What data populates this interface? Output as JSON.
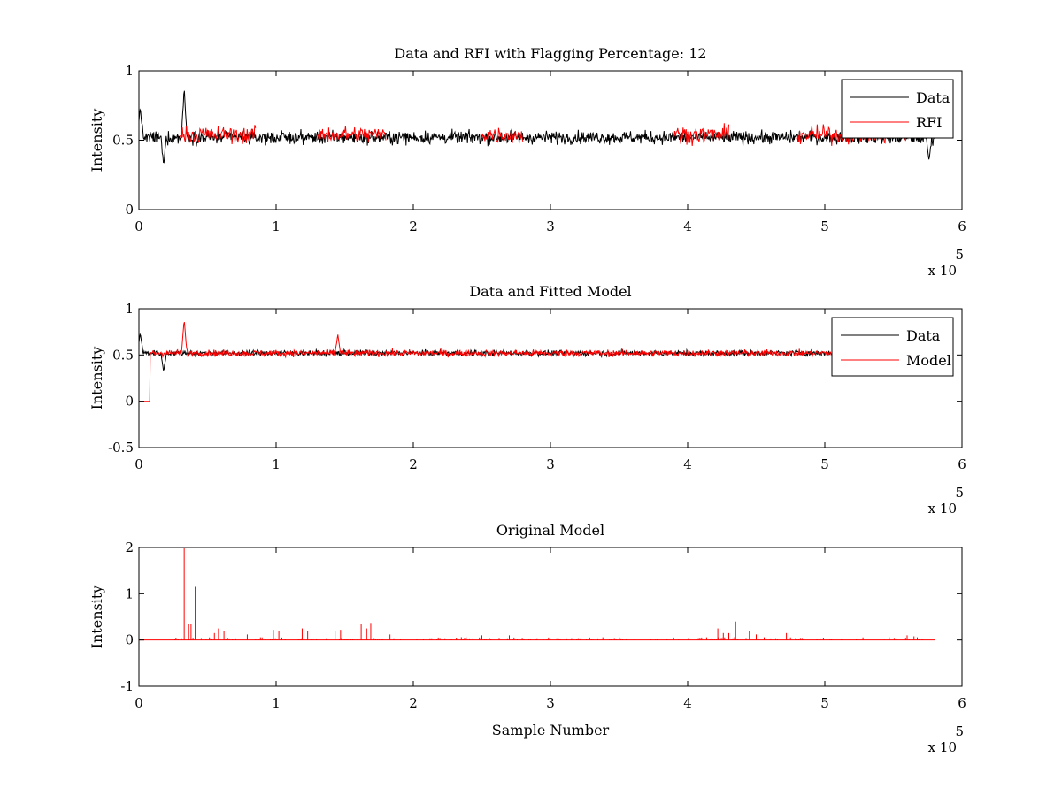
{
  "chart_data": [
    {
      "type": "line",
      "title": "Data and RFI with Flagging Percentage: 12",
      "xlabel": "",
      "ylabel": "Intensity",
      "xlim": [
        0,
        6
      ],
      "ylim": [
        0,
        1
      ],
      "x_ticks": [
        "0",
        "1",
        "2",
        "3",
        "4",
        "5",
        "6"
      ],
      "y_ticks": [
        "0",
        "0.5",
        "1"
      ],
      "x_multiplier": "x 10",
      "x_multiplier_exp": "5",
      "legend": [
        "Data",
        "RFI"
      ],
      "legend_position": "top-right",
      "series": [
        {
          "name": "Data",
          "color": "#000000",
          "baseline": 0.52,
          "noise": 0.045,
          "x_range": [
            0,
            5.8
          ],
          "features": [
            {
              "x": 0.01,
              "y": 0.74
            },
            {
              "x": 0.18,
              "y": 0.32
            },
            {
              "x": 0.33,
              "y": 0.88
            },
            {
              "x": 5.76,
              "y": 0.35
            }
          ]
        },
        {
          "name": "RFI",
          "color": "#ff0000",
          "baseline": 0.54,
          "noise": 0.06,
          "segments": [
            [
              0.3,
              0.85
            ],
            [
              1.3,
              1.8
            ],
            [
              2.5,
              2.8
            ],
            [
              3.9,
              4.3
            ],
            [
              4.8,
              5.6
            ]
          ]
        }
      ]
    },
    {
      "type": "line",
      "title": "Data and Fitted Model",
      "xlabel": "",
      "ylabel": "Intensity",
      "xlim": [
        0,
        6
      ],
      "ylim": [
        -0.5,
        1
      ],
      "x_ticks": [
        "0",
        "1",
        "2",
        "3",
        "4",
        "5",
        "6"
      ],
      "y_ticks": [
        "-0.5",
        "0",
        "0.5",
        "1"
      ],
      "x_multiplier": "x 10",
      "x_multiplier_exp": "5",
      "legend": [
        "Data",
        "Model"
      ],
      "legend_position": "top-right",
      "series": [
        {
          "name": "Data",
          "color": "#000000",
          "baseline": 0.52,
          "noise": 0.03,
          "x_range": [
            0,
            5.8
          ],
          "features": [
            {
              "x": 0.01,
              "y": 0.74
            },
            {
              "x": 0.18,
              "y": 0.32
            }
          ]
        },
        {
          "name": "Model",
          "color": "#ff0000",
          "baseline": 0.52,
          "noise": 0.035,
          "x_range": [
            0,
            5.8
          ],
          "features": [
            {
              "x": 0.33,
              "y": 0.88
            },
            {
              "x": 1.45,
              "y": 0.72
            }
          ],
          "step": {
            "x_end": 0.08,
            "value": 0
          }
        }
      ]
    },
    {
      "type": "line",
      "title": "Original Model",
      "xlabel": "Sample Number",
      "ylabel": "Intensity",
      "xlim": [
        0,
        6
      ],
      "ylim": [
        -1,
        2
      ],
      "x_ticks": [
        "0",
        "1",
        "2",
        "3",
        "4",
        "5",
        "6"
      ],
      "y_ticks": [
        "-1",
        "0",
        "1",
        "2"
      ],
      "x_multiplier": "x 10",
      "x_multiplier_exp": "5",
      "legend": [],
      "series": [
        {
          "name": "Original Model",
          "color": "#ff0000",
          "baseline": 0,
          "x_range": [
            0,
            5.8
          ],
          "spikes": [
            {
              "x": 0.33,
              "y": 2.0
            },
            {
              "x": 0.36,
              "y": 0.35
            },
            {
              "x": 0.38,
              "y": 0.35
            },
            {
              "x": 0.41,
              "y": 1.15
            },
            {
              "x": 0.27,
              "y": 0.05
            },
            {
              "x": 0.55,
              "y": 0.15
            },
            {
              "x": 0.58,
              "y": 0.25
            },
            {
              "x": 0.62,
              "y": 0.2
            },
            {
              "x": 0.79,
              "y": 0.12
            },
            {
              "x": 0.98,
              "y": 0.22
            },
            {
              "x": 1.02,
              "y": 0.2
            },
            {
              "x": 1.19,
              "y": 0.25
            },
            {
              "x": 1.23,
              "y": 0.2
            },
            {
              "x": 1.43,
              "y": 0.2
            },
            {
              "x": 1.47,
              "y": 0.22
            },
            {
              "x": 1.62,
              "y": 0.35
            },
            {
              "x": 1.66,
              "y": 0.25
            },
            {
              "x": 1.69,
              "y": 0.37
            },
            {
              "x": 1.83,
              "y": 0.12
            },
            {
              "x": 2.5,
              "y": 0.1
            },
            {
              "x": 2.7,
              "y": 0.1
            },
            {
              "x": 4.22,
              "y": 0.25
            },
            {
              "x": 4.26,
              "y": 0.15
            },
            {
              "x": 4.3,
              "y": 0.15
            },
            {
              "x": 4.35,
              "y": 0.4
            },
            {
              "x": 4.45,
              "y": 0.2
            },
            {
              "x": 4.5,
              "y": 0.12
            },
            {
              "x": 4.72,
              "y": 0.15
            },
            {
              "x": 5.6,
              "y": 0.1
            },
            {
              "x": 5.65,
              "y": 0.08
            }
          ]
        }
      ]
    }
  ]
}
